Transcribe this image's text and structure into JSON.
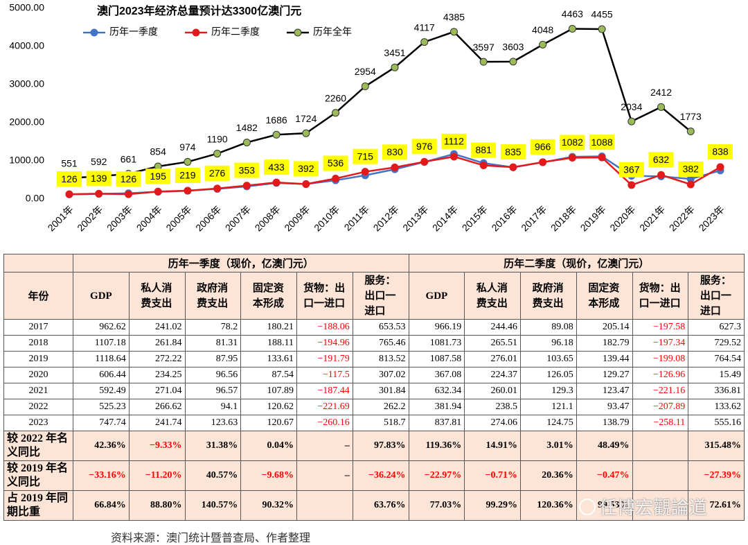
{
  "chart_data": {
    "type": "line",
    "title": "澳门2023年经济总量预计达3300亿澳门元",
    "categories": [
      "2001年",
      "2002年",
      "2003年",
      "2004年",
      "2005年",
      "2006年",
      "2007年",
      "2008年",
      "2009年",
      "2010年",
      "2011年",
      "2012年",
      "2013年",
      "2014年",
      "2015年",
      "2016年",
      "2017年",
      "2018年",
      "2019年",
      "2020年",
      "2021年",
      "2022年",
      "2023年"
    ],
    "series": [
      {
        "name": "历年一季度",
        "color": "#4472c4",
        "values": [
          120,
          135,
          150,
          190,
          215,
          265,
          330,
          420,
          390,
          490,
          620,
          780,
          970,
          1180,
          940,
          830,
          962.62,
          1107.18,
          1118.64,
          606.44,
          592.49,
          525.23,
          747.74
        ]
      },
      {
        "name": "历年二季度",
        "color": "#e31a1c",
        "values": [
          126,
          139,
          126,
          195,
          219,
          276,
          353,
          433,
          392,
          536,
          715,
          830,
          976,
          1112,
          881,
          835,
          966,
          1082,
          1088,
          367,
          632,
          382,
          838
        ]
      },
      {
        "name": "历年全年",
        "color": "#9bbb59",
        "values": [
          551,
          592,
          661,
          854,
          974,
          1190,
          1482,
          1686,
          1724,
          2260,
          2954,
          3451,
          4117,
          4385,
          3597,
          3603,
          4048,
          4463,
          4455,
          2034,
          2412,
          1773,
          null
        ]
      }
    ],
    "ylim": [
      0,
      5000
    ],
    "yticks": [
      {
        "value": 0,
        "label": "0.00"
      },
      {
        "value": 1000,
        "label": "1000.00"
      },
      {
        "value": 2000,
        "label": "2000.00"
      },
      {
        "value": 3000,
        "label": "3000.00"
      },
      {
        "value": 4000,
        "label": "4000.00"
      },
      {
        "value": 5000,
        "label": "5000.00"
      }
    ],
    "grid": false
  },
  "table": {
    "corner": "年份",
    "groups": [
      "历年一季度（现价，亿澳门元）",
      "历年二季度（现价，亿澳门元）"
    ],
    "columns": [
      "GDP",
      "私人消费支出",
      "政府消费支出",
      "固定资本形成",
      "货物：出口一进口",
      "服务：出口一进口",
      "GDP",
      "私人消费支出",
      "政府消费支出",
      "固定资本形成",
      "货物：出口一进口",
      "服务：出口一进口"
    ],
    "rows": [
      [
        "2017",
        "962.62",
        "241.02",
        "78.2",
        "180.21",
        "−188.06",
        "653.53",
        "966.19",
        "244.46",
        "89.08",
        "205.14",
        "−197.58",
        "627.3"
      ],
      [
        "2018",
        "1107.18",
        "261.84",
        "81.31",
        "188.11",
        "−194.96",
        "765.46",
        "1081.73",
        "265.51",
        "96.18",
        "182.79",
        "−197.34",
        "729.52"
      ],
      [
        "2019",
        "1118.64",
        "272.22",
        "87.95",
        "133.61",
        "−191.79",
        "813.52",
        "1087.58",
        "276.01",
        "103.65",
        "139.44",
        "−199.08",
        "764.54"
      ],
      [
        "2020",
        "606.44",
        "234.25",
        "96.56",
        "87.54",
        "−117.5",
        "307.02",
        "367.08",
        "224.37",
        "126.05",
        "129.27",
        "−126.96",
        "15.49"
      ],
      [
        "2021",
        "592.49",
        "271.04",
        "96.57",
        "107.89",
        "−187.44",
        "301.84",
        "632.34",
        "260.01",
        "129.3",
        "123.47",
        "−221.16",
        "336.81"
      ],
      [
        "2022",
        "525.23",
        "266.62",
        "94.1",
        "120.62",
        "−221.69",
        "262.2",
        "381.94",
        "238.5",
        "121.1",
        "93.47",
        "−207.89",
        "133.62"
      ],
      [
        "2023",
        "747.74",
        "241.74",
        "123.63",
        "120.67",
        "−260.16",
        "518.7",
        "837.81",
        "274.06",
        "124.75",
        "138.79",
        "−258.11",
        "555.16"
      ],
      [
        "较 2022 年名义同比",
        "42.36%",
        "−9.33%",
        "31.38%",
        "0.04%",
        "–",
        "97.83%",
        "119.36%",
        "14.91%",
        "3.01%",
        "48.49%",
        null,
        "315.48%"
      ],
      [
        "较 2019 年名义同比",
        "−33.16%",
        "−11.20%",
        "40.57%",
        "−9.68%",
        "–",
        "−36.24%",
        "−22.97%",
        "−0.71%",
        "20.36%",
        "−0.47%",
        null,
        "−27.39%"
      ],
      [
        "占 2019 年同期比重",
        "66.84%",
        "88.80%",
        "140.57%",
        "90.32%",
        null,
        "63.76%",
        "77.03%",
        "99.29%",
        "120.36%",
        "99.53%",
        null,
        "72.61%"
      ]
    ]
  },
  "watermark": "任博宏觀論道",
  "source": "资料来源：澳门统计暨普查局、作者整理"
}
